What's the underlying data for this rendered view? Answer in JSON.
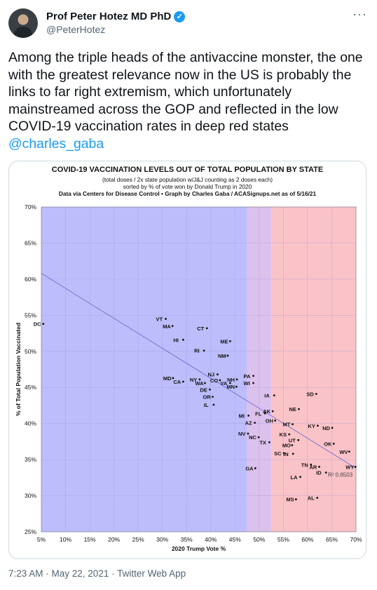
{
  "author": {
    "display_name": "Prof Peter Hotez MD PhD",
    "handle": "@PeterHotez"
  },
  "tweet": {
    "text": "Among the triple heads of the antivaccine monster, the one with the greatest relevance now in the US is probably the links to far right extremism, which unfortunately mainstreamed across the GOP and reflected in the low COVID-19 vaccination rates in deep red states ",
    "mention": "@charles_gaba"
  },
  "meta": {
    "time": "7:23 AM",
    "date": "May 22, 2021",
    "source": "Twitter Web App",
    "separator": " · "
  },
  "icons": {
    "verified": "verified-badge-icon",
    "more": "more-options-icon",
    "avatar": "avatar-photo"
  },
  "colors": {
    "blue_zone": "#bdbdfb",
    "purple_zone": "#dcc1ec",
    "red_zone": "#fac3c8",
    "point": "#111111",
    "trend": "#6b6fd0",
    "link": "#1d9bf0"
  },
  "chart_data": {
    "type": "scatter",
    "title": "COVID-19 VACCINATION LEVELS OUT OF TOTAL POPULATION BY STATE",
    "subtitle_lines": [
      "(total doses / 2x state population w/J&J counting as 2 doses each)",
      "sorted by % of vote won by Donald Trump in 2020",
      "Data via Centers for Disease Control • Graph by Charles Gaba / ACASignups.net as of 5/16/21"
    ],
    "xlabel": "2020 Trump Vote %",
    "ylabel": "% of Total Population Vaccinated",
    "xlim": [
      5,
      70
    ],
    "ylim": [
      25,
      70
    ],
    "x_ticks": [
      "5%",
      "10%",
      "15%",
      "20%",
      "25%",
      "30%",
      "35%",
      "40%",
      "45%",
      "50%",
      "55%",
      "60%",
      "65%",
      "70%"
    ],
    "y_ticks": [
      "25%",
      "30%",
      "35%",
      "40%",
      "45%",
      "50%",
      "55%",
      "60%",
      "65%",
      "70%"
    ],
    "zones": [
      {
        "from": 5,
        "to": 47.5,
        "color": "#bdbdfb"
      },
      {
        "from": 47.5,
        "to": 52.5,
        "color": "#dcc1ec"
      },
      {
        "from": 52.5,
        "to": 70,
        "color": "#fac3c8"
      }
    ],
    "trendline": {
      "x": [
        5,
        70
      ],
      "y": [
        60.8,
        33.8
      ]
    },
    "r_squared_label": "R² 0.6503",
    "points": [
      {
        "label": "DC",
        "x": 5.4,
        "y": 53.8
      },
      {
        "label": "VT",
        "x": 30.7,
        "y": 54.5
      },
      {
        "label": "MA",
        "x": 32.1,
        "y": 53.5
      },
      {
        "label": "CT",
        "x": 39.2,
        "y": 53.2
      },
      {
        "label": "HI",
        "x": 34.3,
        "y": 51.6
      },
      {
        "label": "ME",
        "x": 44.0,
        "y": 51.4
      },
      {
        "label": "RI",
        "x": 38.6,
        "y": 50.1
      },
      {
        "label": "NM",
        "x": 43.5,
        "y": 49.4
      },
      {
        "label": "NJ",
        "x": 41.4,
        "y": 46.8
      },
      {
        "label": "MD",
        "x": 32.2,
        "y": 46.3
      },
      {
        "label": "CA",
        "x": 34.3,
        "y": 45.8
      },
      {
        "label": "NY",
        "x": 37.7,
        "y": 46.1
      },
      {
        "label": "WA",
        "x": 38.8,
        "y": 45.6
      },
      {
        "label": "CO",
        "x": 41.9,
        "y": 46.0
      },
      {
        "label": "VA",
        "x": 44.0,
        "y": 45.6
      },
      {
        "label": "DE",
        "x": 39.8,
        "y": 44.7
      },
      {
        "label": "OR",
        "x": 40.4,
        "y": 43.7
      },
      {
        "label": "IL",
        "x": 40.6,
        "y": 42.6
      },
      {
        "label": "NH",
        "x": 45.4,
        "y": 46.1
      },
      {
        "label": "PA",
        "x": 48.8,
        "y": 46.6
      },
      {
        "label": "MN",
        "x": 45.3,
        "y": 45.1
      },
      {
        "label": "WI",
        "x": 48.8,
        "y": 45.6
      },
      {
        "label": "IA",
        "x": 53.1,
        "y": 43.9
      },
      {
        "label": "SD",
        "x": 61.8,
        "y": 44.1
      },
      {
        "label": "NE",
        "x": 58.2,
        "y": 42.0
      },
      {
        "label": "AK",
        "x": 52.8,
        "y": 41.7
      },
      {
        "label": "FL",
        "x": 51.2,
        "y": 41.4
      },
      {
        "label": "MI",
        "x": 47.8,
        "y": 41.1
      },
      {
        "label": "OH",
        "x": 53.3,
        "y": 40.4
      },
      {
        "label": "AZ",
        "x": 49.1,
        "y": 40.1
      },
      {
        "label": "MT",
        "x": 56.9,
        "y": 39.9
      },
      {
        "label": "KY",
        "x": 62.1,
        "y": 39.7
      },
      {
        "label": "ND",
        "x": 65.1,
        "y": 39.4
      },
      {
        "label": "NV",
        "x": 47.7,
        "y": 38.6
      },
      {
        "label": "KS",
        "x": 56.2,
        "y": 38.5
      },
      {
        "label": "NC",
        "x": 49.9,
        "y": 38.1
      },
      {
        "label": "UT",
        "x": 58.1,
        "y": 37.7
      },
      {
        "label": "TX",
        "x": 52.1,
        "y": 37.4
      },
      {
        "label": "OK",
        "x": 65.4,
        "y": 37.2
      },
      {
        "label": "MO",
        "x": 56.8,
        "y": 37.0
      },
      {
        "label": "WV",
        "x": 68.6,
        "y": 36.1
      },
      {
        "label": "SC",
        "x": 55.1,
        "y": 35.9
      },
      {
        "label": "IN",
        "x": 57.0,
        "y": 35.8
      },
      {
        "label": "TN",
        "x": 60.7,
        "y": 34.3
      },
      {
        "label": "AR",
        "x": 62.4,
        "y": 34.0
      },
      {
        "label": "WY",
        "x": 69.9,
        "y": 34.0
      },
      {
        "label": "GA",
        "x": 49.2,
        "y": 33.8
      },
      {
        "label": "ID",
        "x": 63.8,
        "y": 33.2
      },
      {
        "label": "LA",
        "x": 58.5,
        "y": 32.6
      },
      {
        "label": "MS",
        "x": 57.6,
        "y": 29.5
      },
      {
        "label": "AL",
        "x": 62.0,
        "y": 29.7
      }
    ]
  }
}
